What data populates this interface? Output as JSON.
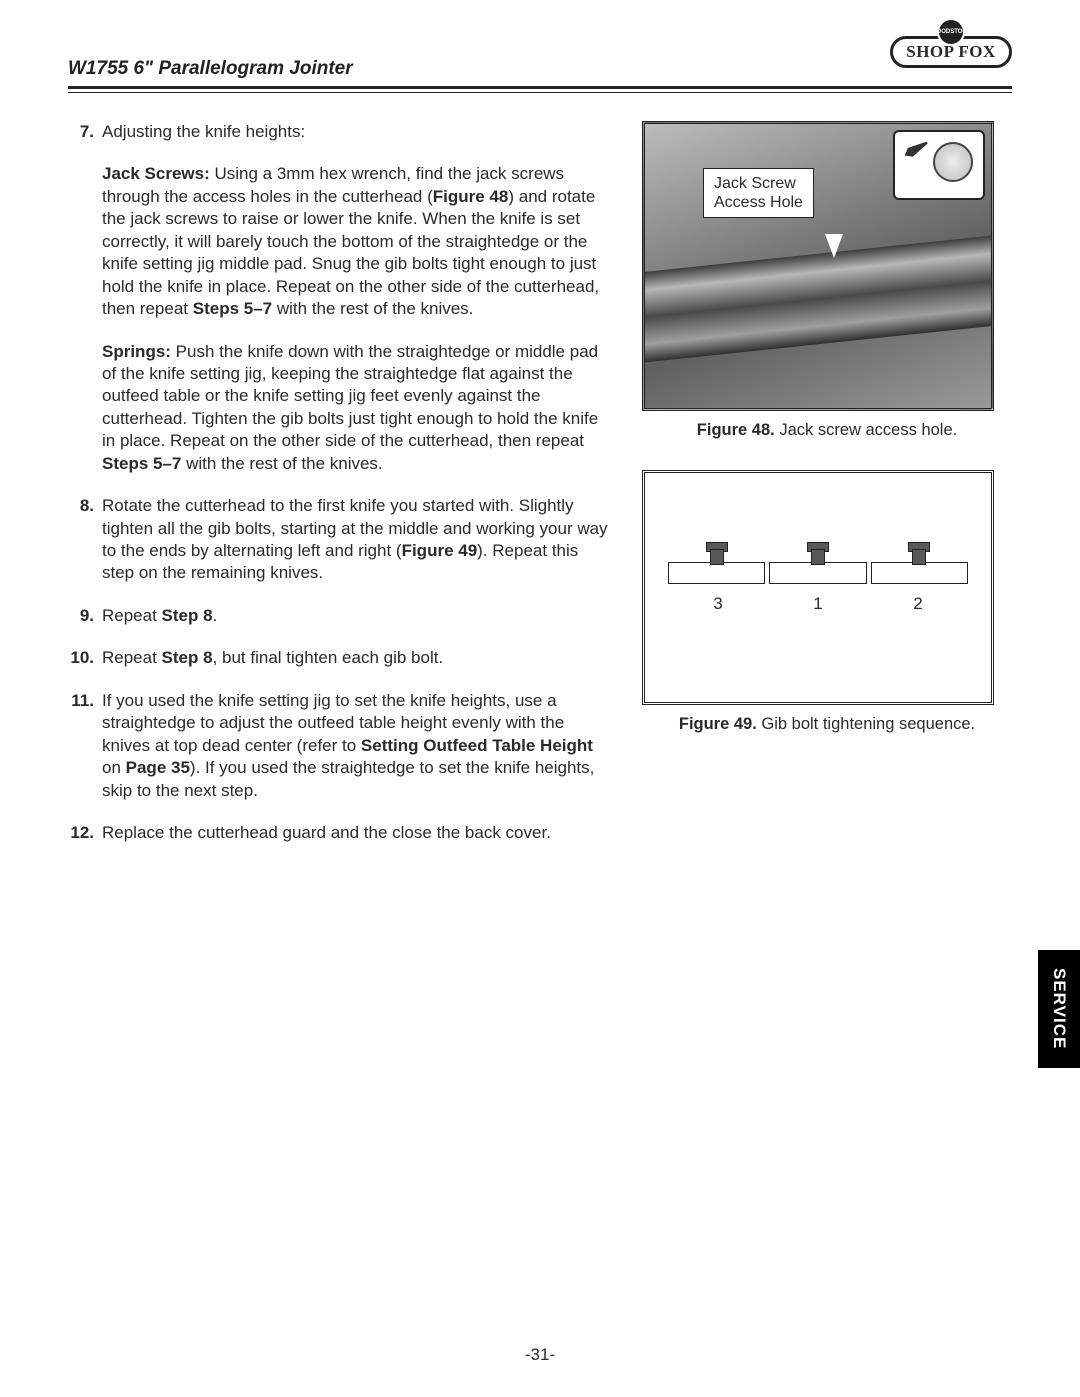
{
  "header": {
    "doc_title": "W1755 6\" Parallelogram Jointer",
    "logo_text": "SHOP FOX",
    "logo_badge": "WOODSTOCK"
  },
  "steps": {
    "s7": {
      "num": "7.",
      "intro": "Adjusting the knife heights:",
      "jack_label": "Jack Screws:",
      "jack_text": " Using a 3mm hex wrench, find the jack screws through the access holes in the cutterhead (",
      "fig48_ref": "Figure 48",
      "jack_text2": ") and rotate the jack screws to raise or lower the knife. When the knife is set correctly, it will barely touch the bottom of the straightedge or the knife setting jig middle pad. Snug the gib bolts tight enough to just hold the knife in place. Repeat on the other side of the cutterhead, then repeat ",
      "steps57a": "Steps 5–7",
      "jack_text3": " with the rest of the knives.",
      "springs_label": "Springs:",
      "springs_text": " Push the knife down with the straightedge or middle pad of the knife setting jig, keeping the straightedge flat against the outfeed table or the knife setting jig feet evenly against the cutterhead. Tighten the gib bolts just tight enough to hold the knife in place. Repeat on the other side of the cutterhead, then repeat ",
      "steps57b": "Steps 5–7",
      "springs_text2": " with the rest of the knives."
    },
    "s8": {
      "num": "8.",
      "text1": "Rotate the cutterhead to the first knife you started with. Slightly tighten all the gib bolts, starting at the middle and working your way to the ends by alternating left and right (",
      "fig49_ref": "Figure 49",
      "text2": "). Repeat this step on the remaining knives."
    },
    "s9": {
      "num": "9.",
      "text1": "Repeat ",
      "ref": "Step 8",
      "text2": "."
    },
    "s10": {
      "num": "10.",
      "text1": "Repeat ",
      "ref": "Step 8",
      "text2": ", but final tighten each gib bolt."
    },
    "s11": {
      "num": "11.",
      "text1": "If you used the knife setting jig to set the knife heights, use a straightedge to adjust the outfeed table height evenly with the knives at top dead center (refer to ",
      "ref1": "Setting Outfeed Table Height",
      "text2": " on ",
      "ref2": "Page 35",
      "text3": "). If you used the straightedge to set the knife heights, skip to the next step."
    },
    "s12": {
      "num": "12.",
      "text": "Replace the cutterhead guard and the close the back cover."
    }
  },
  "fig48": {
    "label_line1": "Jack Screw",
    "label_line2": "Access Hole",
    "caption_bold": "Figure 48.",
    "caption_rest": " Jack screw access hole."
  },
  "fig49": {
    "n1": "3",
    "n2": "1",
    "n3": "2",
    "caption_bold": "Figure 49.",
    "caption_rest": " Gib bolt tightening sequence."
  },
  "tab": "SERVICE",
  "page_num": "-31-"
}
